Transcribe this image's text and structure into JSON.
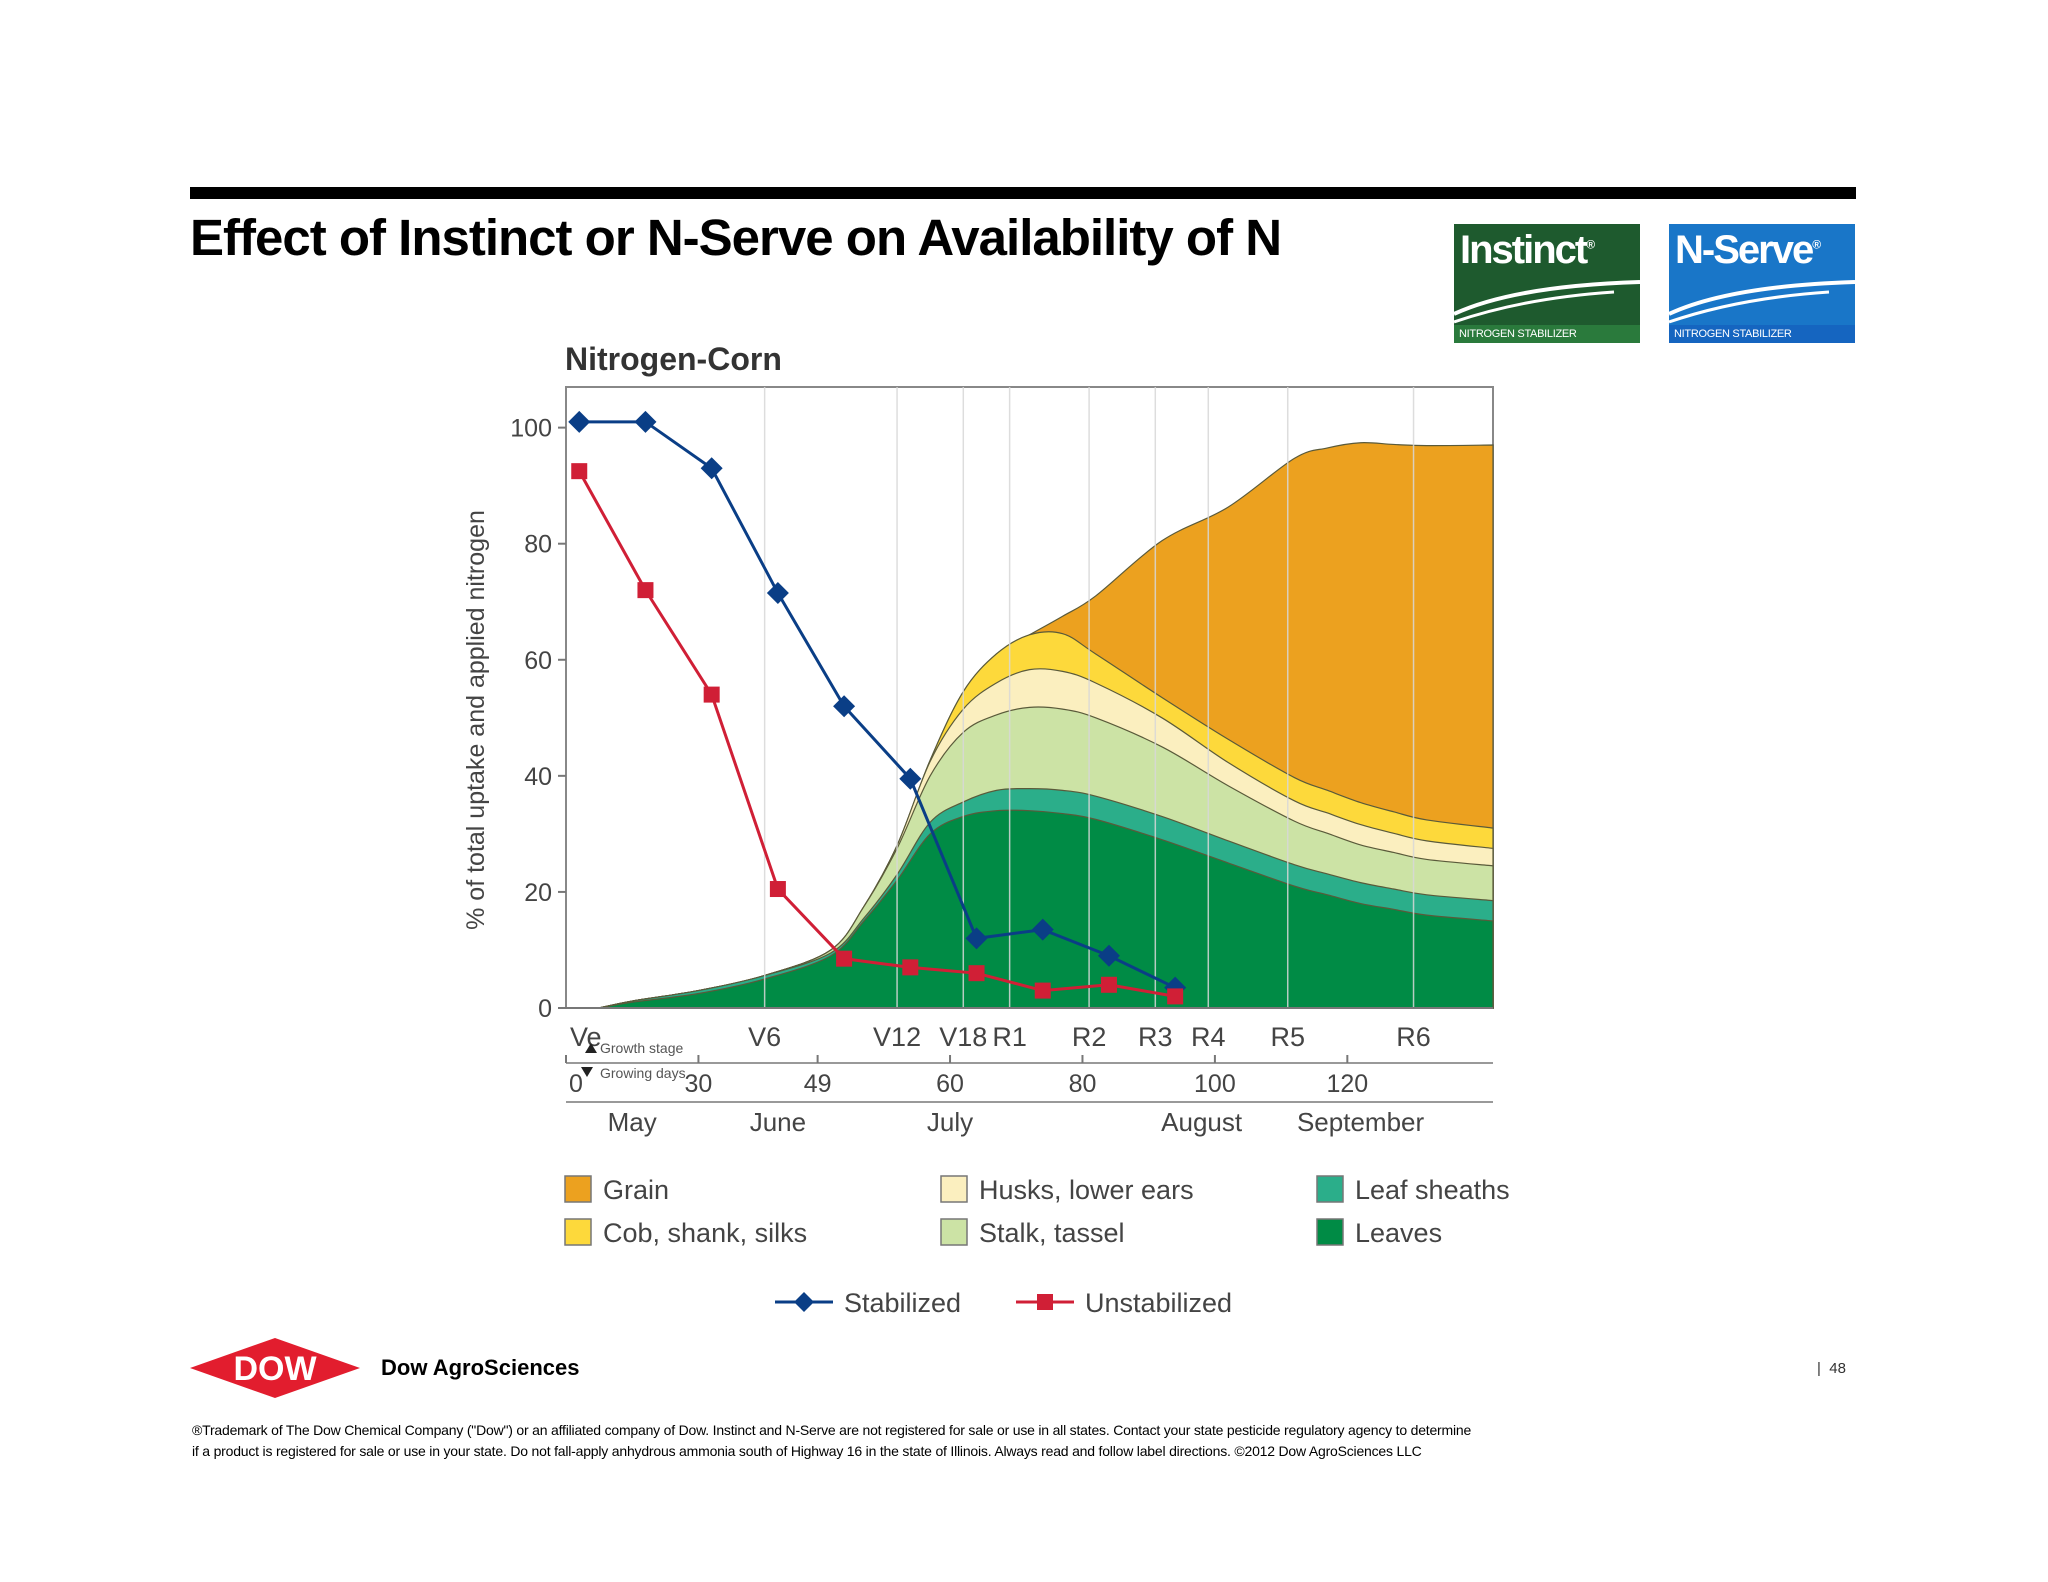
{
  "slide": {
    "title": "Effect of Instinct or N-Serve on Availability of N",
    "page_number": "48",
    "brand": "Dow AgroSciences",
    "dow_logo_text": "DOW",
    "disclaimer_line1": "®Trademark of The Dow Chemical Company (\"Dow\") or an affiliated company of Dow. Instinct and N-Serve are not registered for sale or use in all states. Contact your state pesticide regulatory agency to determine",
    "disclaimer_line2": "if a product is registered for sale or use in your state. Do not fall-apply anhydrous ammonia south of Highway 16 in the state of Illinois. Always read and follow label directions. ©2012 Dow AgroSciences LLC"
  },
  "logos": {
    "instinct": {
      "name": "Instinct",
      "mark": "®",
      "subtitle": "NITROGEN STABILIZER",
      "color": "#1e5a2e",
      "band": "#2a7a3c"
    },
    "nserve": {
      "name": "N-Serve",
      "mark": "®",
      "subtitle": "NITROGEN STABILIZER",
      "color": "#1976c8",
      "band": "#1565c0"
    }
  },
  "chart_data": {
    "type": "area",
    "title": "Nitrogen-Corn",
    "ylabel": "% of total uptake and applied nitrogen",
    "ylim": [
      0,
      107
    ],
    "yticks": [
      0,
      20,
      40,
      60,
      80,
      100
    ],
    "x_domain": [
      0,
      140
    ],
    "growth_stage_label": "Growth stage",
    "growing_days_label": "Growing days",
    "growth_stages": [
      {
        "label": "Ve",
        "x": 0
      },
      {
        "label": "V6",
        "x": 30
      },
      {
        "label": "V12",
        "x": 50
      },
      {
        "label": "V18",
        "x": 60
      },
      {
        "label": "R1",
        "x": 67
      },
      {
        "label": "R2",
        "x": 79
      },
      {
        "label": "R3",
        "x": 89
      },
      {
        "label": "R4",
        "x": 97
      },
      {
        "label": "R5",
        "x": 109
      },
      {
        "label": "R6",
        "x": 128
      }
    ],
    "growing_days": [
      {
        "label": "0",
        "x": 0
      },
      {
        "label": "30",
        "x": 20
      },
      {
        "label": "49",
        "x": 38
      },
      {
        "label": "60",
        "x": 58
      },
      {
        "label": "80",
        "x": 78
      },
      {
        "label": "100",
        "x": 98
      },
      {
        "label": "120",
        "x": 118
      }
    ],
    "months": [
      {
        "label": "May",
        "x": 10
      },
      {
        "label": "June",
        "x": 32
      },
      {
        "label": "July",
        "x": 58
      },
      {
        "label": "August",
        "x": 96
      },
      {
        "label": "September",
        "x": 120
      }
    ],
    "x": [
      5,
      10,
      20,
      30,
      40,
      45,
      50,
      55,
      60,
      65,
      70,
      75,
      80,
      90,
      100,
      110,
      115,
      120,
      125,
      130,
      140
    ],
    "stacked_series": [
      {
        "name": "Leaves",
        "color": "#008b45",
        "values": [
          0,
          1,
          2.5,
          5,
          9,
          15,
          22,
          30,
          33,
          34,
          34,
          33.5,
          32.5,
          29,
          25,
          21,
          19.5,
          18,
          17,
          16,
          15
        ]
      },
      {
        "name": "Leaf sheaths",
        "color": "#2bae8a",
        "values": [
          0,
          0.2,
          0.5,
          0.6,
          0.5,
          0.5,
          1,
          2,
          2.5,
          3.5,
          3.8,
          4,
          4,
          4,
          3.8,
          3.7,
          3.6,
          3.6,
          3.5,
          3.5,
          3.5
        ]
      },
      {
        "name": "Stalk, tassel",
        "color": "#cce3a5",
        "values": [
          0,
          0,
          0,
          0,
          0.5,
          2,
          4.5,
          8,
          12,
          13,
          14,
          14,
          13.5,
          12,
          9.5,
          7.5,
          7,
          6.5,
          6.3,
          6.1,
          6
        ]
      },
      {
        "name": "Husks, lower ears",
        "color": "#fbefbf",
        "values": [
          0,
          0,
          0,
          0,
          0,
          0,
          0.5,
          2.5,
          4,
          5.5,
          6.5,
          6.5,
          6,
          5,
          4,
          3.5,
          3.5,
          3.5,
          3.3,
          3.2,
          3
        ]
      },
      {
        "name": "Cob, shank, silks",
        "color": "#fdd93b",
        "values": [
          0,
          0,
          0,
          0,
          0,
          0,
          0,
          0.2,
          3,
          5,
          6,
          6.5,
          5,
          3.5,
          4,
          4,
          3.9,
          3.8,
          3.7,
          3.6,
          3.5
        ]
      },
      {
        "name": "Grain",
        "color": "#eca11f",
        "values": [
          0,
          0,
          0,
          0,
          0,
          0,
          0,
          0,
          0,
          0,
          0,
          3,
          10,
          27,
          40,
          55,
          59,
          62,
          63.3,
          64.5,
          66
        ]
      }
    ],
    "line_series": [
      {
        "name": "Stabilized",
        "color": "#0a3e86",
        "marker": "diamond",
        "x": [
          2,
          12,
          22,
          32,
          42,
          52,
          62,
          72,
          82,
          92
        ],
        "values": [
          101,
          101,
          93,
          71.5,
          52,
          39.5,
          12,
          13.5,
          9,
          3.5
        ]
      },
      {
        "name": "Unstabilized",
        "color": "#d01f36",
        "marker": "square",
        "x": [
          2,
          12,
          22,
          32,
          42,
          52,
          62,
          72,
          82,
          92
        ],
        "values": [
          92.5,
          72,
          54,
          20.5,
          8.5,
          7,
          6,
          3,
          4,
          2
        ]
      }
    ],
    "legend": {
      "areas": [
        {
          "label": "Grain",
          "color": "#eca11f"
        },
        {
          "label": "Cob, shank, silks",
          "color": "#fdd93b"
        },
        {
          "label": "Husks, lower ears",
          "color": "#fbefbf"
        },
        {
          "label": "Stalk, tassel",
          "color": "#cce3a5"
        },
        {
          "label": "Leaf sheaths",
          "color": "#2bae8a"
        },
        {
          "label": "Leaves",
          "color": "#008b45"
        }
      ],
      "lines": [
        {
          "label": "Stabilized",
          "color": "#0a3e86"
        },
        {
          "label": "Unstabilized",
          "color": "#d01f36"
        }
      ],
      "placement": "bottom"
    },
    "grid": "vertical lines at growth stages"
  }
}
